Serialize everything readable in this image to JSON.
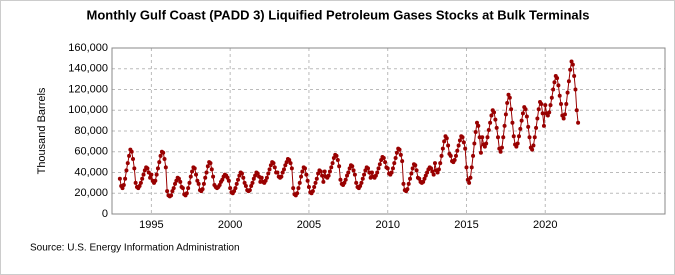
{
  "chart_data": {
    "type": "line",
    "title": "Monthly Gulf Coast (PADD 3) Liquified Petroleum Gases Stocks at Bulk Terminals",
    "y_label": "Thousand Barrels",
    "source": "Source: U.S. Energy Information Administration",
    "color": "#990000",
    "grid": true,
    "xlim": [
      1992.5,
      2027.6
    ],
    "xticks": [
      1995,
      2000,
      2005,
      2010,
      2015,
      2020
    ],
    "ylim": [
      0,
      160000
    ],
    "yticks": [
      0,
      {
        "value": 20000,
        "label": "20,000"
      },
      {
        "value": 40000,
        "label": "40,000"
      },
      {
        "value": 60000,
        "label": "60,000"
      },
      {
        "value": 80000,
        "label": "80,000"
      },
      {
        "value": 100000,
        "label": "100,000"
      },
      {
        "value": 120000,
        "label": "120,000"
      },
      {
        "value": 140000,
        "label": "140,000"
      },
      {
        "value": 160000,
        "label": "160,000"
      }
    ],
    "x": [
      "1993-01",
      "1993-02",
      "1993-03",
      "1993-04",
      "1993-05",
      "1993-06",
      "1993-07",
      "1993-08",
      "1993-09",
      "1993-10",
      "1993-11",
      "1993-12",
      "1994-01",
      "1994-02",
      "1994-03",
      "1994-04",
      "1994-05",
      "1994-06",
      "1994-07",
      "1994-08",
      "1994-09",
      "1994-10",
      "1994-11",
      "1994-12",
      "1995-01",
      "1995-02",
      "1995-03",
      "1995-04",
      "1995-05",
      "1995-06",
      "1995-07",
      "1995-08",
      "1995-09",
      "1995-10",
      "1995-11",
      "1995-12",
      "1996-01",
      "1996-02",
      "1996-03",
      "1996-04",
      "1996-05",
      "1996-06",
      "1996-07",
      "1996-08",
      "1996-09",
      "1996-10",
      "1996-11",
      "1996-12",
      "1997-01",
      "1997-02",
      "1997-03",
      "1997-04",
      "1997-05",
      "1997-06",
      "1997-07",
      "1997-08",
      "1997-09",
      "1997-10",
      "1997-11",
      "1997-12",
      "1998-01",
      "1998-02",
      "1998-03",
      "1998-04",
      "1998-05",
      "1998-06",
      "1998-07",
      "1998-08",
      "1998-09",
      "1998-10",
      "1998-11",
      "1998-12",
      "1999-01",
      "1999-02",
      "1999-03",
      "1999-04",
      "1999-05",
      "1999-06",
      "1999-07",
      "1999-08",
      "1999-09",
      "1999-10",
      "1999-11",
      "1999-12",
      "2000-01",
      "2000-02",
      "2000-03",
      "2000-04",
      "2000-05",
      "2000-06",
      "2000-07",
      "2000-08",
      "2000-09",
      "2000-10",
      "2000-11",
      "2000-12",
      "2001-01",
      "2001-02",
      "2001-03",
      "2001-04",
      "2001-05",
      "2001-06",
      "2001-07",
      "2001-08",
      "2001-09",
      "2001-10",
      "2001-11",
      "2001-12",
      "2002-01",
      "2002-02",
      "2002-03",
      "2002-04",
      "2002-05",
      "2002-06",
      "2002-07",
      "2002-08",
      "2002-09",
      "2002-10",
      "2002-11",
      "2002-12",
      "2003-01",
      "2003-02",
      "2003-03",
      "2003-04",
      "2003-05",
      "2003-06",
      "2003-07",
      "2003-08",
      "2003-09",
      "2003-10",
      "2003-11",
      "2003-12",
      "2004-01",
      "2004-02",
      "2004-03",
      "2004-04",
      "2004-05",
      "2004-06",
      "2004-07",
      "2004-08",
      "2004-09",
      "2004-10",
      "2004-11",
      "2004-12",
      "2005-01",
      "2005-02",
      "2005-03",
      "2005-04",
      "2005-05",
      "2005-06",
      "2005-07",
      "2005-08",
      "2005-09",
      "2005-10",
      "2005-11",
      "2005-12",
      "2006-01",
      "2006-02",
      "2006-03",
      "2006-04",
      "2006-05",
      "2006-06",
      "2006-07",
      "2006-08",
      "2006-09",
      "2006-10",
      "2006-11",
      "2006-12",
      "2007-01",
      "2007-02",
      "2007-03",
      "2007-04",
      "2007-05",
      "2007-06",
      "2007-07",
      "2007-08",
      "2007-09",
      "2007-10",
      "2007-11",
      "2007-12",
      "2008-01",
      "2008-02",
      "2008-03",
      "2008-04",
      "2008-05",
      "2008-06",
      "2008-07",
      "2008-08",
      "2008-09",
      "2008-10",
      "2008-11",
      "2008-12",
      "2009-01",
      "2009-02",
      "2009-03",
      "2009-04",
      "2009-05",
      "2009-06",
      "2009-07",
      "2009-08",
      "2009-09",
      "2009-10",
      "2009-11",
      "2009-12",
      "2010-01",
      "2010-02",
      "2010-03",
      "2010-04",
      "2010-05",
      "2010-06",
      "2010-07",
      "2010-08",
      "2010-09",
      "2010-10",
      "2010-11",
      "2010-12",
      "2011-01",
      "2011-02",
      "2011-03",
      "2011-04",
      "2011-05",
      "2011-06",
      "2011-07",
      "2011-08",
      "2011-09",
      "2011-10",
      "2011-11",
      "2011-12",
      "2012-01",
      "2012-02",
      "2012-03",
      "2012-04",
      "2012-05",
      "2012-06",
      "2012-07",
      "2012-08",
      "2012-09",
      "2012-10",
      "2012-11",
      "2012-12",
      "2013-01",
      "2013-02",
      "2013-03",
      "2013-04",
      "2013-05",
      "2013-06",
      "2013-07",
      "2013-08",
      "2013-09",
      "2013-10",
      "2013-11",
      "2013-12",
      "2014-01",
      "2014-02",
      "2014-03",
      "2014-04",
      "2014-05",
      "2014-06",
      "2014-07",
      "2014-08",
      "2014-09",
      "2014-10",
      "2014-11",
      "2014-12",
      "2015-01",
      "2015-02",
      "2015-03",
      "2015-04",
      "2015-05",
      "2015-06",
      "2015-07",
      "2015-08",
      "2015-09",
      "2015-10",
      "2015-11",
      "2015-12",
      "2016-01",
      "2016-02",
      "2016-03",
      "2016-04",
      "2016-05",
      "2016-06",
      "2016-07",
      "2016-08",
      "2016-09",
      "2016-10",
      "2016-11",
      "2016-12",
      "2017-01",
      "2017-02",
      "2017-03",
      "2017-04",
      "2017-05",
      "2017-06",
      "2017-07",
      "2017-08",
      "2017-09",
      "2017-10",
      "2017-11",
      "2017-12",
      "2018-01",
      "2018-02",
      "2018-03",
      "2018-04",
      "2018-05",
      "2018-06",
      "2018-07",
      "2018-08",
      "2018-09",
      "2018-10",
      "2018-11",
      "2018-12",
      "2019-01",
      "2019-02",
      "2019-03",
      "2019-04",
      "2019-05",
      "2019-06",
      "2019-07",
      "2019-08",
      "2019-09",
      "2019-10",
      "2019-11",
      "2019-12",
      "2020-01",
      "2020-02",
      "2020-03",
      "2020-04",
      "2020-05",
      "2020-06",
      "2020-07",
      "2020-08",
      "2020-09",
      "2020-10",
      "2020-11",
      "2020-12",
      "2021-01",
      "2021-02",
      "2021-03",
      "2021-04",
      "2021-05",
      "2021-06",
      "2021-07",
      "2021-08",
      "2021-09",
      "2021-10",
      "2021-11",
      "2021-12",
      "2022-01",
      "2022-02"
    ],
    "values": [
      34000,
      27000,
      25000,
      28000,
      34000,
      42000,
      49000,
      56000,
      62000,
      60000,
      53000,
      44000,
      30000,
      26000,
      25000,
      27000,
      30000,
      34000,
      38000,
      42000,
      45000,
      44000,
      40000,
      35000,
      38000,
      32000,
      30000,
      32000,
      38000,
      44000,
      50000,
      56000,
      60000,
      59000,
      53000,
      45000,
      22000,
      18000,
      17000,
      18000,
      22000,
      25000,
      29000,
      32000,
      35000,
      34000,
      31000,
      26000,
      25000,
      19000,
      18000,
      20000,
      25000,
      30000,
      36000,
      41000,
      45000,
      44000,
      38000,
      32000,
      29000,
      23000,
      22000,
      24000,
      29000,
      35000,
      40000,
      46000,
      50000,
      49000,
      43000,
      36000,
      28000,
      26000,
      25000,
      26000,
      28000,
      31000,
      33000,
      36000,
      38000,
      37000,
      35000,
      32000,
      25000,
      21000,
      20000,
      22000,
      25000,
      29000,
      33000,
      37000,
      40000,
      39000,
      35000,
      30000,
      27000,
      23000,
      22000,
      23000,
      27000,
      30000,
      34000,
      37000,
      40000,
      39000,
      36000,
      31000,
      35000,
      31000,
      30000,
      32000,
      35000,
      39000,
      43000,
      47000,
      50000,
      49000,
      45000,
      40000,
      40000,
      36000,
      35000,
      36000,
      40000,
      43000,
      47000,
      50000,
      53000,
      52000,
      49000,
      44000,
      25000,
      19000,
      18000,
      20000,
      25000,
      30000,
      36000,
      41000,
      45000,
      44000,
      38000,
      32000,
      26000,
      21000,
      20000,
      22000,
      26000,
      30000,
      34000,
      39000,
      42000,
      41000,
      37000,
      31000,
      41000,
      36000,
      35000,
      37000,
      41000,
      45000,
      49000,
      54000,
      57000,
      56000,
      52000,
      46000,
      33000,
      29000,
      28000,
      30000,
      33000,
      37000,
      40000,
      44000,
      47000,
      46000,
      42000,
      38000,
      30000,
      26000,
      25000,
      27000,
      30000,
      34000,
      38000,
      42000,
      45000,
      44000,
      40000,
      35000,
      40000,
      36000,
      35000,
      37000,
      40000,
      44000,
      48000,
      52000,
      55000,
      54000,
      50000,
      45000,
      44000,
      39000,
      38000,
      40000,
      44000,
      49000,
      54000,
      59000,
      63000,
      62000,
      57000,
      51000,
      29000,
      23000,
      22000,
      24000,
      29000,
      34000,
      39000,
      44000,
      48000,
      47000,
      42000,
      35000,
      34000,
      31000,
      30000,
      31000,
      34000,
      37000,
      40000,
      43000,
      45000,
      44000,
      41000,
      38000,
      49000,
      42000,
      40000,
      43000,
      49000,
      56000,
      63000,
      70000,
      75000,
      73000,
      66000,
      58000,
      56000,
      51000,
      50000,
      52000,
      56000,
      61000,
      66000,
      71000,
      75000,
      74000,
      69000,
      63000,
      45000,
      33000,
      30000,
      35000,
      45000,
      56000,
      68000,
      79000,
      88000,
      85000,
      74000,
      59000,
      74000,
      67000,
      65000,
      68000,
      74000,
      81000,
      88000,
      95000,
      100000,
      98000,
      91000,
      83000,
      74000,
      63000,
      60000,
      64000,
      74000,
      85000,
      96000,
      107000,
      115000,
      112000,
      101000,
      88000,
      75000,
      67000,
      65000,
      68000,
      75000,
      82000,
      90000,
      97000,
      103000,
      101000,
      94000,
      84000,
      74000,
      64000,
      62000,
      66000,
      74000,
      83000,
      92000,
      101000,
      108000,
      106000,
      97000,
      85000,
      105000,
      97000,
      95000,
      98000,
      105000,
      112000,
      120000,
      127000,
      133000,
      131000,
      124000,
      114000,
      106000,
      95000,
      92000,
      96000,
      106000,
      117000,
      128000,
      139000,
      147000,
      144000,
      133000,
      120000,
      100000,
      88000
    ]
  }
}
